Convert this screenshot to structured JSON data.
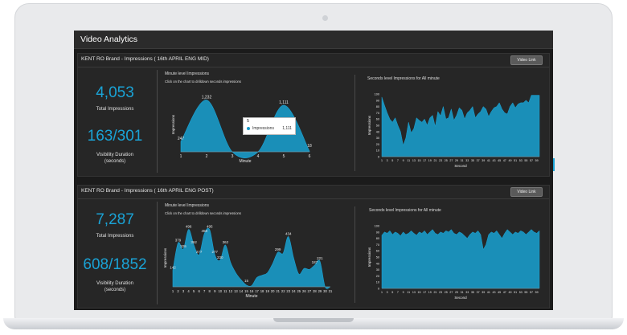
{
  "window": {
    "title": "Video Analytics"
  },
  "panels": [
    {
      "title": "KENT RO Brand - Impressions ( 16th APRIL ENG MID)",
      "video_link": "Video Link",
      "total_impressions": "4,053",
      "total_impressions_label": "Total Impressions",
      "visibility": "163/301",
      "visibility_label_1": "Visibility Duration",
      "visibility_label_2": "(seconds)",
      "minute_chart_title": "Minute level Impressions",
      "minute_chart_sub": "Click on the chart to drilldown seconds impressions",
      "seconds_chart_title": "Seconds level Impressions for  All minute"
    },
    {
      "title": "KENT RO Brand - Impressions ( 16th APRIL ENG POST)",
      "video_link": "Video Link",
      "total_impressions": "7,287",
      "total_impressions_label": "Total Impressions",
      "visibility": "608/1852",
      "visibility_label_1": "Visibility Duration",
      "visibility_label_2": "(seconds)",
      "minute_chart_title": "Minute level Impressions",
      "minute_chart_sub": "Click on the chart to drilldown seconds impressions",
      "seconds_chart_title": "Seconds level Impressions for  All minute"
    }
  ],
  "tooltip": {
    "x": "5",
    "series": "Impressions",
    "value": "1,111"
  },
  "colors": {
    "accent": "#1aa3d6",
    "area": "#1a8fb8",
    "panel": "#262626",
    "screen": "#1b1b1b"
  },
  "chart_data": [
    {
      "type": "area",
      "xlabel": "Minute",
      "ylabel": "Impressions",
      "x": [
        1,
        2,
        3,
        4,
        5,
        6
      ],
      "values": [
        247,
        1232,
        0,
        0,
        1111,
        18
      ],
      "data_labels": [
        "247",
        "1,232",
        "",
        "",
        "1,111",
        "18"
      ],
      "ylim": [
        0,
        1300
      ]
    },
    {
      "type": "area",
      "xlabel": "Second",
      "ylabel": "Impressions",
      "x_ticks": [
        1,
        3,
        5,
        7,
        9,
        11,
        13,
        15,
        17,
        19,
        21,
        23,
        25,
        27,
        29,
        31,
        33,
        35,
        37,
        39,
        41,
        43,
        45,
        47,
        49,
        51,
        53,
        55,
        57,
        59
      ],
      "y_ticks": [
        0,
        10,
        20,
        30,
        40,
        50,
        60,
        70,
        80,
        90,
        100
      ],
      "values": [
        95,
        82,
        70,
        60,
        55,
        62,
        50,
        40,
        18,
        30,
        55,
        38,
        45,
        62,
        58,
        55,
        60,
        50,
        62,
        66,
        48,
        72,
        65,
        80,
        60,
        62,
        76,
        58,
        66,
        78,
        74,
        60,
        70,
        74,
        80,
        62,
        68,
        72,
        80,
        76,
        64,
        72,
        78,
        80,
        86,
        76,
        70,
        68,
        80,
        86,
        78,
        84,
        86,
        86,
        90,
        86,
        98,
        98,
        98,
        98
      ],
      "ylim": [
        0,
        100
      ]
    },
    {
      "type": "area",
      "xlabel": "Minute",
      "ylabel": "Impressions",
      "x": [
        1,
        2,
        3,
        4,
        5,
        6,
        7,
        8,
        9,
        10,
        11,
        12,
        13,
        14,
        15,
        16,
        17,
        18,
        19,
        20,
        21,
        22,
        23,
        24,
        25,
        26,
        27,
        28,
        29,
        30,
        31
      ],
      "values": [
        142,
        379,
        325,
        496,
        362,
        277,
        458,
        495,
        277,
        230,
        362,
        210,
        120,
        60,
        15,
        10,
        80,
        100,
        120,
        200,
        299,
        290,
        434,
        250,
        110,
        159,
        150,
        187,
        221,
        0,
        0
      ],
      "data_labels": [
        "142",
        "379",
        "325",
        "496",
        "362",
        "277",
        "458",
        "495",
        "277",
        "230",
        "362",
        "",
        "",
        "",
        "15",
        "",
        "",
        "",
        "",
        "",
        "299",
        "",
        "434",
        "",
        "",
        "",
        "",
        "187",
        "221",
        "",
        ""
      ],
      "ylim": [
        0,
        500
      ]
    },
    {
      "type": "area",
      "xlabel": "Second",
      "ylabel": "Impressions",
      "x_ticks": [
        1,
        3,
        5,
        7,
        9,
        11,
        13,
        15,
        17,
        19,
        21,
        23,
        25,
        27,
        29,
        31,
        33,
        35,
        37,
        39,
        41,
        43,
        45,
        47,
        49,
        51,
        53,
        55,
        57,
        59
      ],
      "y_ticks": [
        0,
        10,
        20,
        30,
        40,
        50,
        60,
        70,
        80,
        90,
        100
      ],
      "values": [
        85,
        90,
        88,
        92,
        86,
        90,
        88,
        84,
        90,
        86,
        88,
        92,
        88,
        85,
        90,
        88,
        92,
        86,
        90,
        94,
        88,
        86,
        90,
        88,
        92,
        90,
        94,
        88,
        86,
        90,
        88,
        84,
        80,
        86,
        90,
        88,
        92,
        86,
        62,
        70,
        86,
        90,
        88,
        92,
        86,
        80,
        88,
        94,
        90,
        86,
        90,
        88,
        92,
        90,
        86,
        90,
        94,
        90,
        88,
        92
      ],
      "ylim": [
        0,
        100
      ]
    }
  ]
}
